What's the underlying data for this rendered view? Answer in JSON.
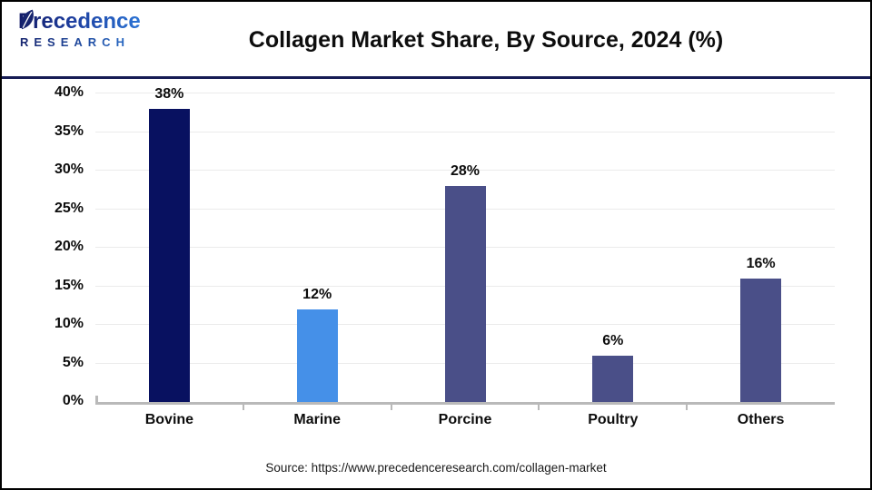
{
  "header": {
    "logo": {
      "line1": "Precedence",
      "line2": "RESEARCH"
    },
    "title": "Collagen Market Share, By Source, 2024 (%)"
  },
  "chart_data": {
    "type": "bar",
    "title": "Collagen Market Share, By Source, 2024 (%)",
    "categories": [
      "Bovine",
      "Marine",
      "Porcine",
      "Poultry",
      "Others"
    ],
    "values": [
      38,
      12,
      28,
      6,
      16
    ],
    "value_labels": [
      "38%",
      "12%",
      "28%",
      "6%",
      "16%"
    ],
    "bar_colors": [
      "#081160",
      "#4590e8",
      "#4a4f88",
      "#4a4f88",
      "#4a4f88"
    ],
    "xlabel": "",
    "ylabel": "",
    "ylim": [
      0,
      40
    ],
    "ytick_step": 5,
    "ytick_labels": [
      "0%",
      "5%",
      "10%",
      "15%",
      "20%",
      "25%",
      "30%",
      "35%",
      "40%"
    ],
    "grid": true,
    "legend": "none",
    "gridline_color": "#ebebeb",
    "axis_color": "#b9b9b9"
  },
  "footer": {
    "source": "Source: https://www.precedenceresearch.com/collagen-market"
  },
  "colors": {
    "divider_navy": "#161c54",
    "logo_gradient_start": "#121b66",
    "logo_gradient_end": "#2e7fe0"
  }
}
